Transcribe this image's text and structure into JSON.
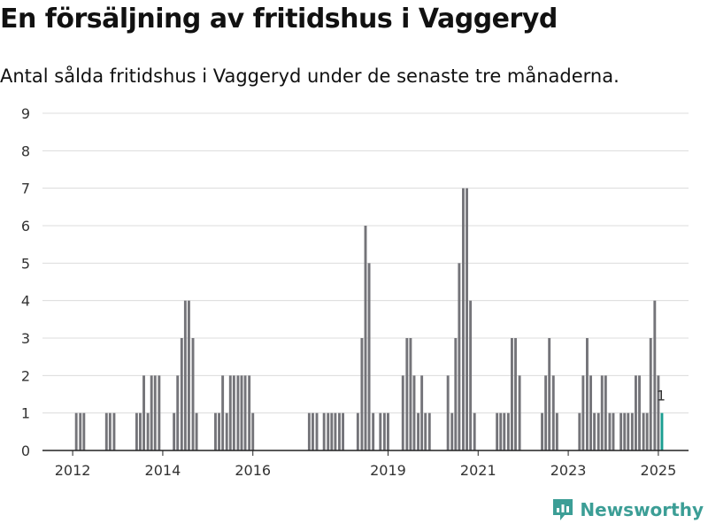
{
  "title": "En försäljning av fritidshus i Vaggeryd",
  "subtitle": "Antal sålda fritidshus i Vaggeryd under de senaste tre månaderna.",
  "brand": {
    "name": "Newsworthy",
    "color": "#3c9e96"
  },
  "colors": {
    "bar": "#747479",
    "highlight": "#1b9e91",
    "grid": "#dcdcdc"
  },
  "chart_data": {
    "type": "bar",
    "title": "",
    "xlabel": "",
    "ylabel": "",
    "ylim": [
      0,
      9
    ],
    "yticks": [
      0,
      1,
      2,
      3,
      4,
      5,
      6,
      7,
      8,
      9
    ],
    "xlim": [
      2011.33,
      2025.67
    ],
    "xticks": [
      {
        "value": 2012.0,
        "label": "2012"
      },
      {
        "value": 2014.0,
        "label": "2014"
      },
      {
        "value": 2016.0,
        "label": "2016"
      },
      {
        "value": 2019.0,
        "label": "2019"
      },
      {
        "value": 2021.0,
        "label": "2021"
      },
      {
        "value": 2023.0,
        "label": "2023"
      },
      {
        "value": 2025.0,
        "label": "2025"
      }
    ],
    "grid": true,
    "series": [
      {
        "values": [
          [
            2012.08,
            1
          ],
          [
            2012.17,
            1
          ],
          [
            2012.25,
            1
          ],
          [
            2012.75,
            1
          ],
          [
            2012.83,
            1
          ],
          [
            2012.92,
            1
          ],
          [
            2013.42,
            1
          ],
          [
            2013.5,
            1
          ],
          [
            2013.58,
            2
          ],
          [
            2013.67,
            1
          ],
          [
            2013.75,
            2
          ],
          [
            2013.83,
            2
          ],
          [
            2013.92,
            2
          ],
          [
            2014.25,
            1
          ],
          [
            2014.33,
            2
          ],
          [
            2014.42,
            3
          ],
          [
            2014.5,
            4
          ],
          [
            2014.58,
            4
          ],
          [
            2014.67,
            3
          ],
          [
            2014.75,
            1
          ],
          [
            2015.17,
            1
          ],
          [
            2015.25,
            1
          ],
          [
            2015.33,
            2
          ],
          [
            2015.42,
            1
          ],
          [
            2015.5,
            2
          ],
          [
            2015.58,
            2
          ],
          [
            2015.67,
            2
          ],
          [
            2015.75,
            2
          ],
          [
            2015.83,
            2
          ],
          [
            2015.92,
            2
          ],
          [
            2016.0,
            1
          ],
          [
            2017.25,
            1
          ],
          [
            2017.33,
            1
          ],
          [
            2017.42,
            1
          ],
          [
            2017.58,
            1
          ],
          [
            2017.67,
            1
          ],
          [
            2017.75,
            1
          ],
          [
            2017.83,
            1
          ],
          [
            2017.92,
            1
          ],
          [
            2018.0,
            1
          ],
          [
            2018.33,
            1
          ],
          [
            2018.42,
            3
          ],
          [
            2018.5,
            6
          ],
          [
            2018.58,
            5
          ],
          [
            2018.67,
            1
          ],
          [
            2018.83,
            1
          ],
          [
            2018.92,
            1
          ],
          [
            2019.0,
            1
          ],
          [
            2019.33,
            2
          ],
          [
            2019.42,
            3
          ],
          [
            2019.5,
            3
          ],
          [
            2019.58,
            2
          ],
          [
            2019.67,
            1
          ],
          [
            2019.75,
            2
          ],
          [
            2019.83,
            1
          ],
          [
            2019.92,
            1
          ],
          [
            2020.33,
            2
          ],
          [
            2020.42,
            1
          ],
          [
            2020.5,
            3
          ],
          [
            2020.58,
            5
          ],
          [
            2020.67,
            7
          ],
          [
            2020.75,
            7
          ],
          [
            2020.83,
            4
          ],
          [
            2020.92,
            1
          ],
          [
            2021.42,
            1
          ],
          [
            2021.5,
            1
          ],
          [
            2021.58,
            1
          ],
          [
            2021.67,
            1
          ],
          [
            2021.75,
            3
          ],
          [
            2021.83,
            3
          ],
          [
            2021.92,
            2
          ],
          [
            2022.42,
            1
          ],
          [
            2022.5,
            2
          ],
          [
            2022.58,
            3
          ],
          [
            2022.67,
            2
          ],
          [
            2022.75,
            1
          ],
          [
            2023.25,
            1
          ],
          [
            2023.33,
            2
          ],
          [
            2023.42,
            3
          ],
          [
            2023.5,
            2
          ],
          [
            2023.58,
            1
          ],
          [
            2023.67,
            1
          ],
          [
            2023.75,
            2
          ],
          [
            2023.83,
            2
          ],
          [
            2023.92,
            1
          ],
          [
            2024.0,
            1
          ],
          [
            2024.17,
            1
          ],
          [
            2024.25,
            1
          ],
          [
            2024.33,
            1
          ],
          [
            2024.42,
            1
          ],
          [
            2024.5,
            2
          ],
          [
            2024.58,
            2
          ],
          [
            2024.67,
            1
          ],
          [
            2024.75,
            1
          ],
          [
            2024.83,
            3
          ],
          [
            2024.92,
            4
          ],
          [
            2025.0,
            2
          ],
          [
            2025.08,
            1
          ]
        ]
      }
    ],
    "highlight": {
      "x": 2025.08,
      "value": 1,
      "label": "1"
    }
  }
}
